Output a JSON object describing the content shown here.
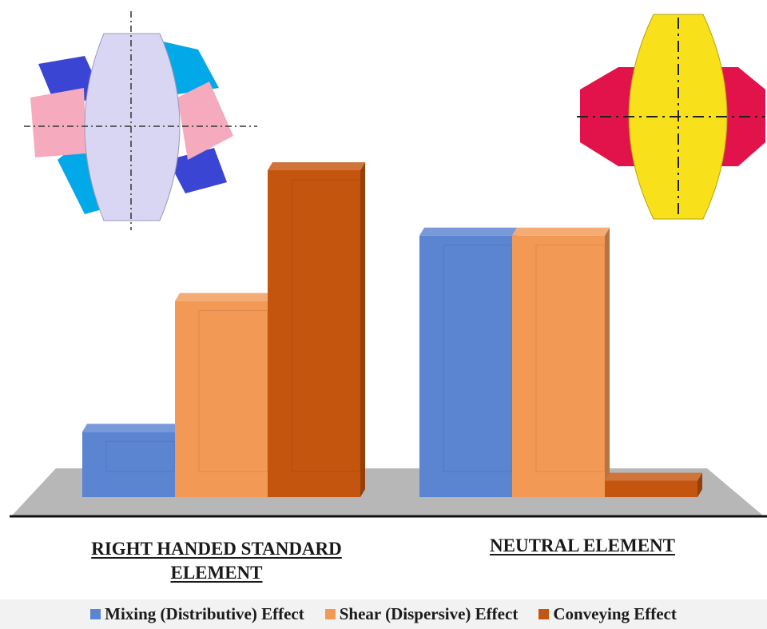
{
  "chart_data": {
    "type": "bar",
    "style": "3d-column",
    "categories": [
      "RIGHT HANDED STANDARD ELEMENT",
      "NEUTRAL ELEMENT"
    ],
    "series": [
      {
        "name": "Mixing (Distributive) Effect",
        "color": "#5b84d1",
        "values": [
          0.2,
          0.8
        ]
      },
      {
        "name": "Shear (Dispersive) Effect",
        "color": "#f29a55",
        "values": [
          0.6,
          0.8
        ]
      },
      {
        "name": "Conveying Effect",
        "color": "#c4550f",
        "values": [
          1.0,
          0.05
        ]
      }
    ],
    "title": "",
    "xlabel": "",
    "ylabel": "",
    "ylim": [
      0,
      1
    ],
    "axes_visible": false,
    "grid": false,
    "legend_position": "bottom"
  },
  "labels": {
    "cat1_line1": "RIGHT HANDED STANDARD",
    "cat1_line2": "ELEMENT",
    "cat2": "NEUTRAL ELEMENT"
  },
  "illustrations": [
    {
      "name": "right-handed-kneading-block",
      "colors": [
        "#d8d6f2",
        "#02a9e8",
        "#3a45d4",
        "#f5aabd"
      ]
    },
    {
      "name": "neutral-kneading-block",
      "colors": [
        "#f8e01b",
        "#e2124a"
      ]
    }
  ]
}
